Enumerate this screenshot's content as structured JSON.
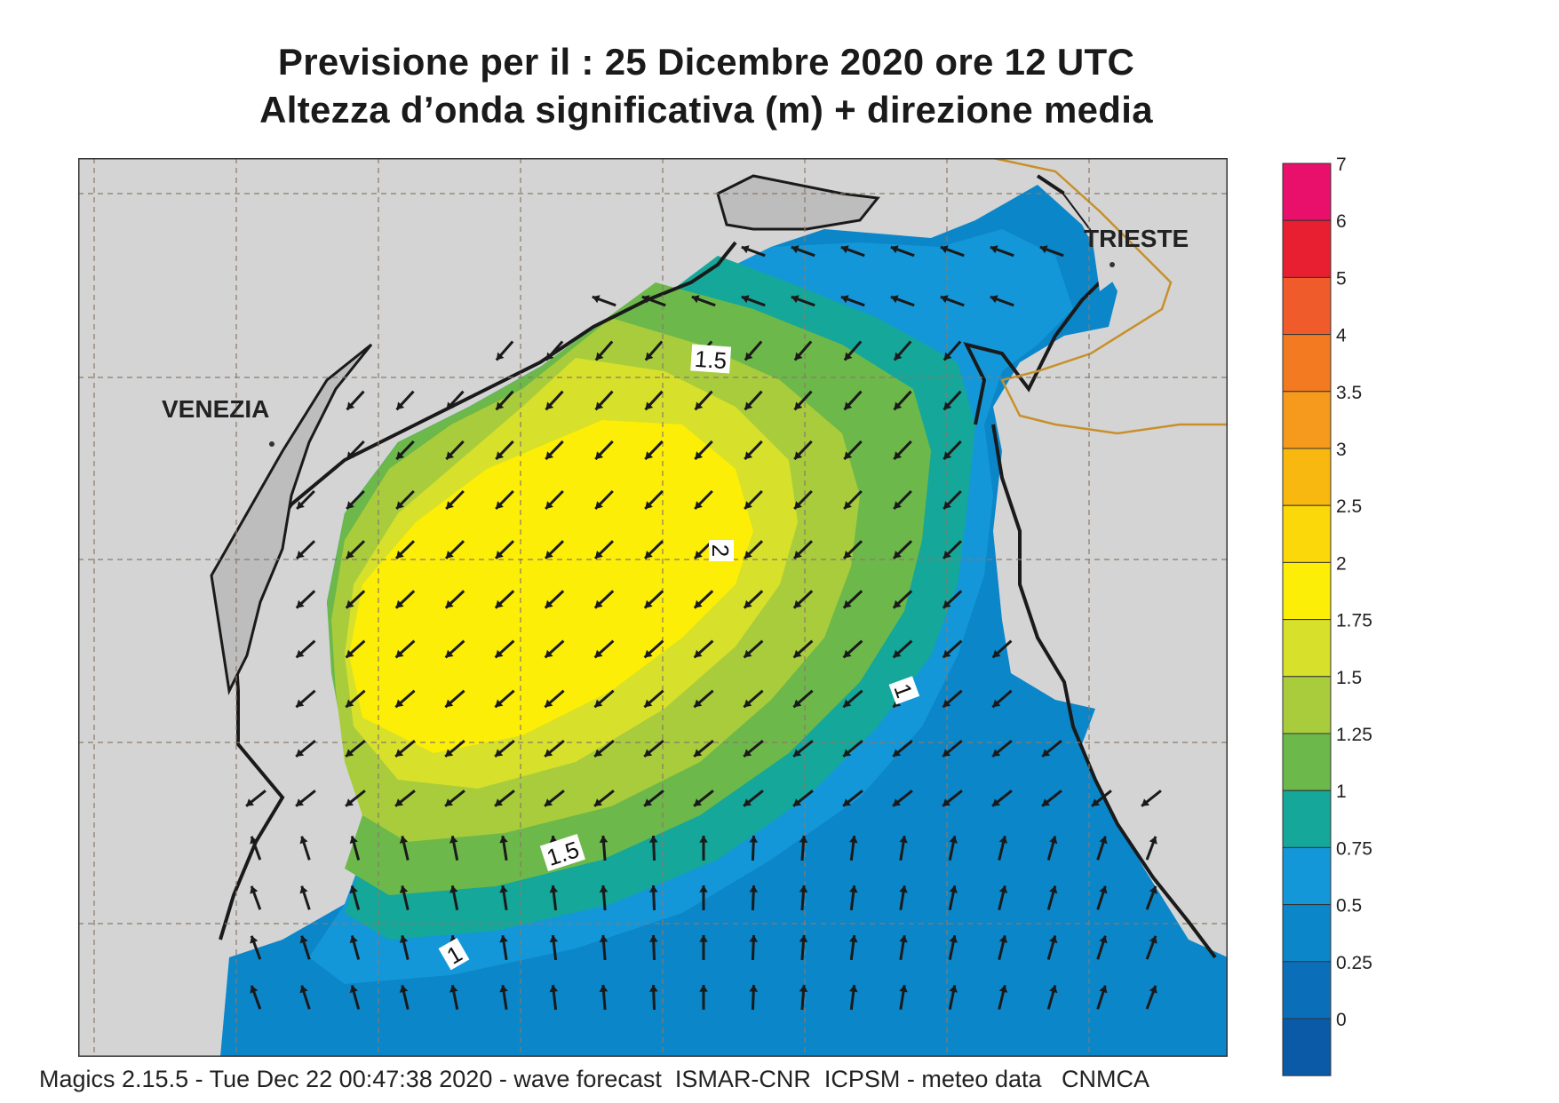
{
  "header": {
    "title_line1": "Previsione per il  :  25 Dicembre  2020   ore 12 UTC",
    "title_line2": "Altezza d’onda significativa (m) + direzione media"
  },
  "map": {
    "cities": [
      {
        "name": "VENEZIA"
      },
      {
        "name": "TRIESTE"
      }
    ],
    "contour_labels": [
      {
        "text": "1.5"
      },
      {
        "text": "2"
      },
      {
        "text": "1"
      },
      {
        "text": "1.5"
      },
      {
        "text": "1"
      }
    ],
    "wave_direction_arrows": "mean wave direction vectors, predominantly pointing south-west in the central basin and north/north-east near the southern edge"
  },
  "legend": {
    "labels": [
      "7",
      "6",
      "5",
      "4",
      "3.5",
      "3",
      "2.5",
      "2",
      "1.75",
      "1.5",
      "1.25",
      "1",
      "0.75",
      "0.5",
      "0.25",
      "0"
    ],
    "colors": [
      "#e8106b",
      "#e81f30",
      "#ef5b2a",
      "#f37a21",
      "#f59a1c",
      "#f8b80f",
      "#fbd809",
      "#fcee06",
      "#d7e02a",
      "#a8cc3c",
      "#6db84a",
      "#15a79a",
      "#1497d8",
      "#0b86c9",
      "#0a6fb8",
      "#0a5aa8"
    ]
  },
  "footer": {
    "text": "Magics 2.15.5 - Tue Dec 22 00:47:38 2020 - wave forecast  ISMAR-CNR  ICPSM - meteo data   CNMCA"
  },
  "colors": {
    "land": "#d4d4d4",
    "coast": "#1a1a1a",
    "border": "#c8902a",
    "grid": "#8a7a6a"
  }
}
